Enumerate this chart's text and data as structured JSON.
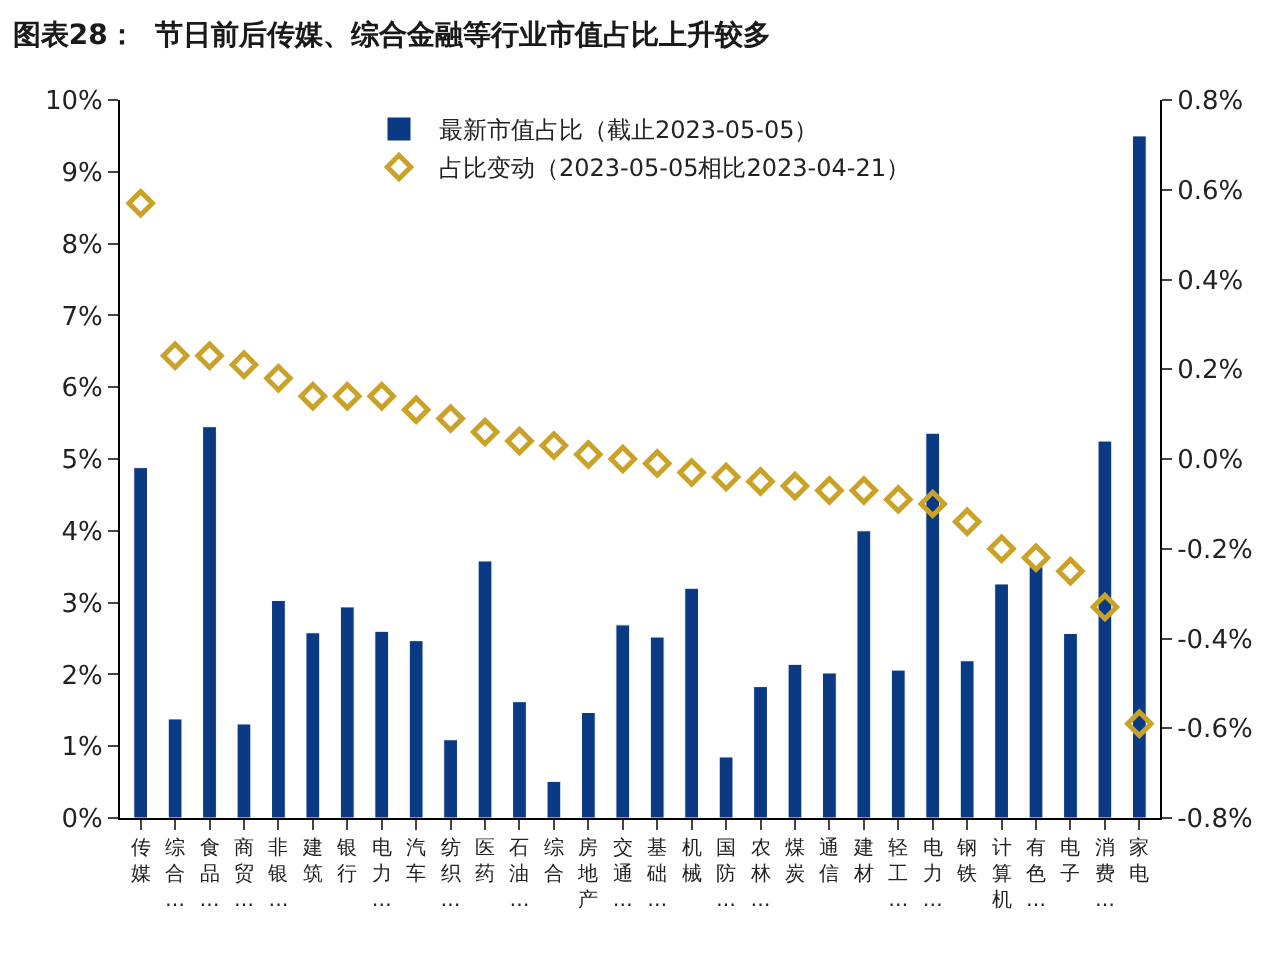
{
  "chart_data": {
    "type": "bar",
    "title": "图表28：  节日前后传媒、综合金融等行业市值占比上升较多",
    "categories": [
      "传媒",
      "综合…",
      "食品…",
      "商贸…",
      "非银…",
      "建筑",
      "银行",
      "电力…",
      "汽车",
      "纺织…",
      "医药",
      "石油…",
      "综合",
      "房地产",
      "交通…",
      "基础…",
      "机械",
      "国防…",
      "农林…",
      "煤炭",
      "通信",
      "建材",
      "轻工…",
      "电力…",
      "钢铁",
      "计算机",
      "有色…",
      "电子",
      "消费…",
      "家电"
    ],
    "series": [
      {
        "name": "最新市值占比（截止2023-05-05）",
        "color": "#0b3a84",
        "values": [
          4.88,
          1.38,
          5.45,
          1.31,
          3.03,
          2.58,
          2.94,
          2.6,
          2.47,
          1.09,
          3.58,
          1.62,
          0.51,
          1.47,
          2.69,
          2.52,
          3.2,
          0.85,
          1.83,
          2.14,
          2.02,
          4.0,
          2.06,
          5.36,
          2.19,
          3.26,
          3.5,
          2.57,
          5.25,
          9.5
        ]
      },
      {
        "name": "占比变动（2023-05-05相比2023-04-21）",
        "type": "scatter",
        "axis": "y2",
        "color": "#c9a227",
        "values": [
          0.57,
          0.23,
          0.23,
          0.21,
          0.18,
          0.14,
          0.14,
          0.14,
          0.11,
          0.09,
          0.06,
          0.04,
          0.03,
          0.01,
          0.0,
          -0.01,
          -0.03,
          -0.04,
          -0.05,
          -0.06,
          -0.07,
          -0.07,
          -0.09,
          -0.1,
          -0.14,
          -0.2,
          -0.22,
          -0.25,
          -0.33,
          -0.59
        ]
      }
    ],
    "marker": "diamond",
    "legend": "top",
    "grid": false,
    "ylim": [
      0,
      10
    ],
    "yticks": [
      {
        "value": 0,
        "label": "0%"
      },
      {
        "value": 1,
        "label": "1%"
      },
      {
        "value": 2,
        "label": "2%"
      },
      {
        "value": 3,
        "label": "3%"
      },
      {
        "value": 4,
        "label": "4%"
      },
      {
        "value": 5,
        "label": "5%"
      },
      {
        "value": 6,
        "label": "6%"
      },
      {
        "value": 7,
        "label": "7%"
      },
      {
        "value": 8,
        "label": "8%"
      },
      {
        "value": 9,
        "label": "9%"
      },
      {
        "value": 10,
        "label": "10%"
      }
    ],
    "y2lim": [
      -0.8,
      0.8
    ],
    "y2ticks": [
      {
        "value": -0.8,
        "label": "-0.8%"
      },
      {
        "value": -0.6,
        "label": "-0.6%"
      },
      {
        "value": -0.4,
        "label": "-0.4%"
      },
      {
        "value": -0.2,
        "label": "-0.2%"
      },
      {
        "value": 0,
        "label": "0.0%"
      },
      {
        "value": 0.2,
        "label": "0.2%"
      },
      {
        "value": 0.4,
        "label": "0.4%"
      },
      {
        "value": 0.6,
        "label": "0.6%"
      },
      {
        "value": 0.8,
        "label": "0.8%"
      }
    ]
  }
}
